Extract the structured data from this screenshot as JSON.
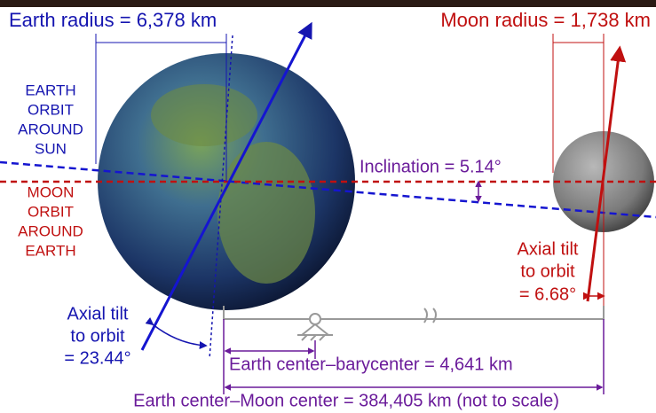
{
  "labels": {
    "earth_radius": "Earth radius = 6,378 km",
    "moon_radius": "Moon radius = 1,738 km",
    "earth_orbit": {
      "lines": [
        "EARTH",
        "ORBIT",
        "AROUND",
        "SUN"
      ]
    },
    "moon_orbit": {
      "lines": [
        "MOON",
        "ORBIT",
        "AROUND",
        "EARTH"
      ]
    },
    "inclination": "Inclination = 5.14°",
    "moon_tilt": {
      "lines": [
        "Axial tilt",
        "to orbit",
        "= 6.68°"
      ]
    },
    "earth_tilt": {
      "lines": [
        "Axial tilt",
        "to orbit",
        "= 23.44°"
      ]
    },
    "barycenter": "Earth center–barycenter = 4,641 km",
    "moon_distance": "Earth center–Moon center = 384,405 km (not to scale)"
  }
}
